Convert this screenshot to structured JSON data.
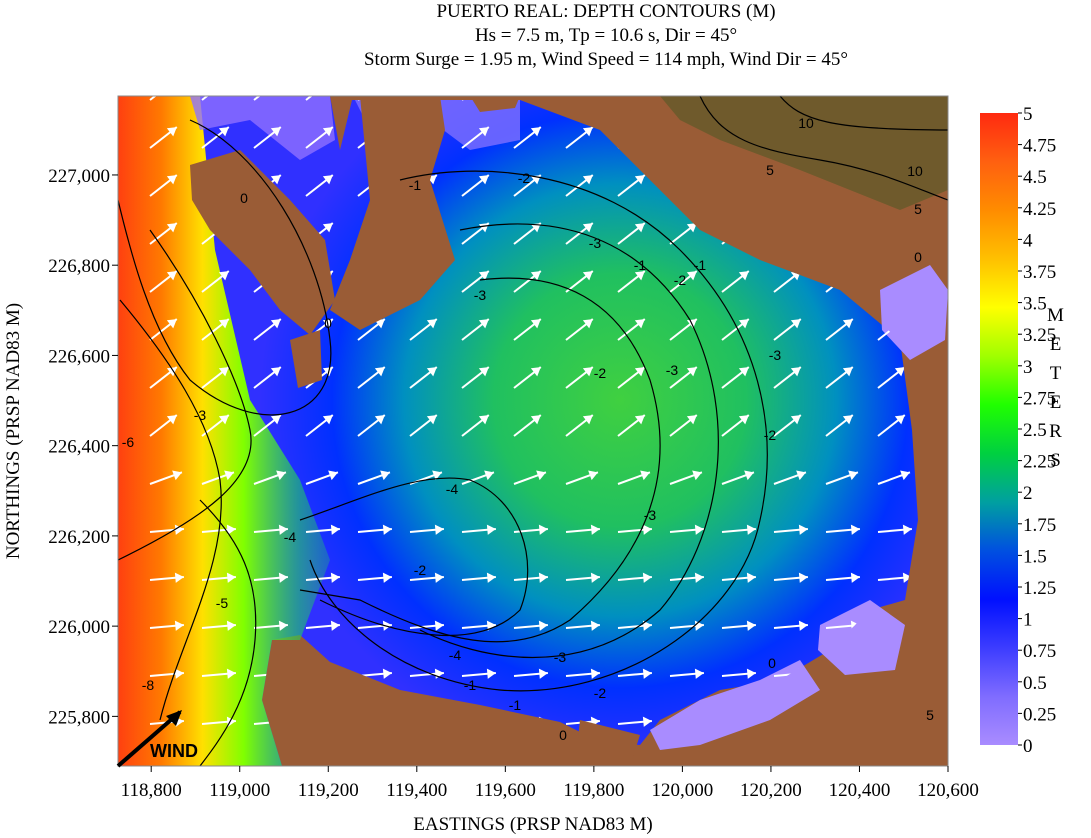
{
  "chart_data": {
    "type": "contour",
    "title": "PUERTO REAL: DEPTH CONTOURS (M)",
    "subtitle": "Hs = 7.5 m, Tp = 10.6 s, Dir = 45°",
    "subtitle2": "Storm Surge = 1.95 m, Wind Speed = 114 mph, Wind Dir = 45°",
    "x_label": "EASTINGS (PRSP NAD83 M)",
    "y_label": "NORTHINGS (PRSP NAD83 M)",
    "annotation": "WIND",
    "xlim": [
      118725,
      120600
    ],
    "ylim": [
      225690,
      227175
    ],
    "xticks": [
      {
        "value": 118800,
        "label": "118,800"
      },
      {
        "value": 119000,
        "label": "119,000"
      },
      {
        "value": 119200,
        "label": "119,200"
      },
      {
        "value": 119400,
        "label": "119,400"
      },
      {
        "value": 119600,
        "label": "119,600"
      },
      {
        "value": 119800,
        "label": "119,800"
      },
      {
        "value": 120000,
        "label": "120,000"
      },
      {
        "value": 120200,
        "label": "120,200"
      },
      {
        "value": 120400,
        "label": "120,400"
      },
      {
        "value": 120600,
        "label": "120,600"
      }
    ],
    "yticks": [
      {
        "value": 225800,
        "label": "225,800"
      },
      {
        "value": 226000,
        "label": "226,000"
      },
      {
        "value": 226200,
        "label": "226,200"
      },
      {
        "value": 226400,
        "label": "226,400"
      },
      {
        "value": 226600,
        "label": "226,600"
      },
      {
        "value": 226800,
        "label": "226,800"
      },
      {
        "value": 227000,
        "label": "227,000"
      }
    ],
    "contour_labels": [
      -1,
      -2,
      -3,
      -1,
      -2,
      -3,
      -3,
      -4,
      -2,
      -3,
      -4,
      -3,
      -2,
      -1,
      -1,
      -2,
      -3,
      -4,
      -5,
      -6,
      -8,
      -3,
      0,
      0,
      0,
      0,
      5,
      5,
      10,
      10,
      -2,
      -1,
      0,
      5
    ],
    "colorbar": {
      "label": "METERS",
      "lim": [
        0,
        5
      ],
      "ticks": [
        0,
        0.25,
        0.5,
        0.75,
        1,
        1.25,
        1.5,
        1.75,
        2,
        2.25,
        2.5,
        2.75,
        3,
        3.25,
        3.5,
        3.75,
        4,
        4.25,
        4.5,
        4.75,
        5
      ],
      "colors": [
        "#a98cff",
        "#7f6cff",
        "#3c3cff",
        "#0010ff",
        "#0050e0",
        "#00a0a0",
        "#00d040",
        "#20ff00",
        "#a0ff00",
        "#ffff00",
        "#ffc000",
        "#ff8c00",
        "#ff6010",
        "#ff2a10"
      ]
    }
  }
}
